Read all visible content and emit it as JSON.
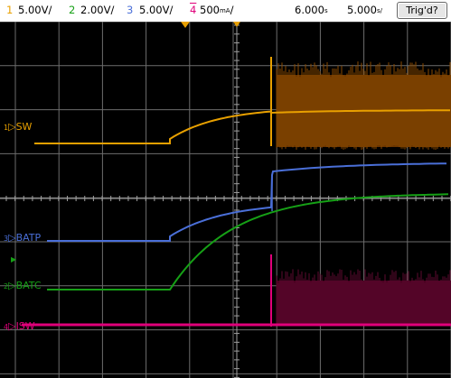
{
  "toolbar": {
    "ch1": {
      "num": "1",
      "scale": "5.00V/",
      "color": "#e8a000"
    },
    "ch2": {
      "num": "2",
      "scale": "2.00V/",
      "color": "#16a016"
    },
    "ch3": {
      "num": "3",
      "scale": "5.00V/",
      "color": "#4a6fd8"
    },
    "ch4": {
      "num": "4",
      "scale": "500",
      "unit": "mA",
      "suffix": "/",
      "color": "#e0007a"
    },
    "time_offset": "6.000",
    "time_offset_unit": "s",
    "time_scale": "5.000",
    "time_scale_unit": "s/",
    "trig_label": "Trig'd?"
  },
  "channels": [
    {
      "key": "sw",
      "num": "1",
      "label": "SW",
      "color": "#e8a000"
    },
    {
      "key": "batp",
      "num": "3",
      "label": "BATP",
      "color": "#4a6fd8"
    },
    {
      "key": "batc",
      "num": "2",
      "label": "BATC",
      "color": "#16a016"
    },
    {
      "key": "isw",
      "num": "4",
      "label": "ISW",
      "color": "#e0007a"
    }
  ],
  "colors": {
    "trace_sw": "#e8a000",
    "trace_sw_burst": "#6a3500",
    "trace_batp": "#4a6fd8",
    "trace_batc": "#16a016",
    "trace_isw": "#e0007a",
    "trace_isw_burst": "#4a0020",
    "grid": "#6d6d6d"
  }
}
